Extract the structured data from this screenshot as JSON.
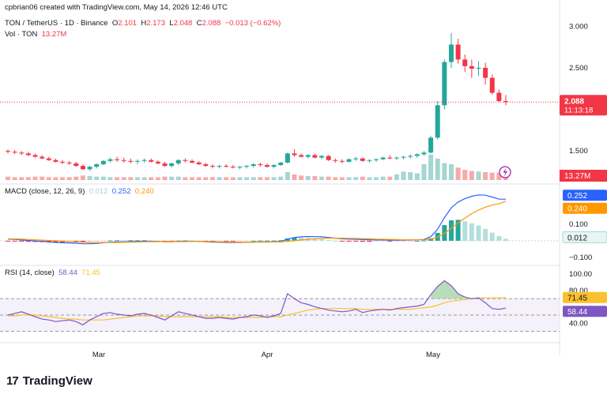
{
  "header": {
    "created": "cpbrian06 created with TradingView.com, May 14, 2026 12:46 UTC"
  },
  "price_legend": {
    "symbol": "TON / TetherUS · 1D · Binance",
    "o_label": "O",
    "o": "2.101",
    "h_label": "H",
    "h": "2.173",
    "l_label": "L",
    "l": "2.048",
    "c_label": "C",
    "c": "2.088",
    "change": "−0.013 (−0.62%)"
  },
  "vol_legend": {
    "label": "Vol · TON",
    "value": "13.27M"
  },
  "price_axis": {
    "ticks": [
      "3.000",
      "2.500",
      "1.500"
    ],
    "last_price": "2.088",
    "countdown": "11:13:18"
  },
  "volume_badge": "13.27M",
  "macd": {
    "label": "MACD (close, 12, 26, 9)",
    "hist": "0.012",
    "macd": "0.252",
    "signal": "0.240",
    "ticks": [
      "0.200",
      "0.100",
      "−0.100"
    ]
  },
  "rsi": {
    "label": "RSI (14, close)",
    "value": "58.44",
    "ma": "71.45",
    "ticks": [
      "100.00",
      "80.00",
      "40.00"
    ]
  },
  "time_axis": [
    "Mar",
    "Apr",
    "May"
  ],
  "brand": {
    "logo": "17",
    "name": "TradingView"
  },
  "colors": {
    "up": "#26a69a",
    "down": "#f23645",
    "vol_up": "#a5d6d2",
    "vol_down": "#f7a9a7",
    "macd": "#2962ff",
    "signal": "#ff9800",
    "rsi": "#7e57c2",
    "rsi_ma": "#fbc02d",
    "rsi_fill": "#ede7f6",
    "axis_text": "#131722"
  },
  "chart_data": {
    "type": "candlestick",
    "ohlc": [
      [
        1.5,
        1.52,
        1.47,
        1.49
      ],
      [
        1.49,
        1.51,
        1.46,
        1.48
      ],
      [
        1.48,
        1.5,
        1.45,
        1.47
      ],
      [
        1.47,
        1.49,
        1.44,
        1.45
      ],
      [
        1.45,
        1.47,
        1.42,
        1.43
      ],
      [
        1.43,
        1.45,
        1.4,
        1.41
      ],
      [
        1.41,
        1.43,
        1.38,
        1.39
      ],
      [
        1.39,
        1.41,
        1.36,
        1.37
      ],
      [
        1.37,
        1.39,
        1.34,
        1.36
      ],
      [
        1.36,
        1.38,
        1.33,
        1.35
      ],
      [
        1.35,
        1.37,
        1.31,
        1.32
      ],
      [
        1.32,
        1.34,
        1.27,
        1.28
      ],
      [
        1.28,
        1.32,
        1.26,
        1.31
      ],
      [
        1.31,
        1.35,
        1.29,
        1.34
      ],
      [
        1.34,
        1.39,
        1.33,
        1.38
      ],
      [
        1.38,
        1.42,
        1.36,
        1.4
      ],
      [
        1.4,
        1.43,
        1.37,
        1.39
      ],
      [
        1.39,
        1.42,
        1.36,
        1.38
      ],
      [
        1.38,
        1.41,
        1.35,
        1.37
      ],
      [
        1.37,
        1.4,
        1.34,
        1.38
      ],
      [
        1.38,
        1.41,
        1.36,
        1.39
      ],
      [
        1.39,
        1.41,
        1.36,
        1.37
      ],
      [
        1.37,
        1.39,
        1.34,
        1.35
      ],
      [
        1.35,
        1.37,
        1.31,
        1.32
      ],
      [
        1.32,
        1.36,
        1.3,
        1.35
      ],
      [
        1.35,
        1.4,
        1.33,
        1.39
      ],
      [
        1.39,
        1.41,
        1.36,
        1.38
      ],
      [
        1.38,
        1.4,
        1.35,
        1.36
      ],
      [
        1.36,
        1.38,
        1.33,
        1.34
      ],
      [
        1.34,
        1.36,
        1.31,
        1.32
      ],
      [
        1.32,
        1.34,
        1.29,
        1.31
      ],
      [
        1.31,
        1.33,
        1.29,
        1.32
      ],
      [
        1.32,
        1.34,
        1.3,
        1.31
      ],
      [
        1.31,
        1.33,
        1.29,
        1.3
      ],
      [
        1.3,
        1.32,
        1.28,
        1.31
      ],
      [
        1.31,
        1.33,
        1.29,
        1.32
      ],
      [
        1.32,
        1.35,
        1.3,
        1.34
      ],
      [
        1.34,
        1.36,
        1.31,
        1.33
      ],
      [
        1.33,
        1.35,
        1.3,
        1.31
      ],
      [
        1.31,
        1.34,
        1.29,
        1.33
      ],
      [
        1.33,
        1.37,
        1.32,
        1.36
      ],
      [
        1.36,
        1.48,
        1.35,
        1.47
      ],
      [
        1.47,
        1.52,
        1.43,
        1.45
      ],
      [
        1.45,
        1.47,
        1.42,
        1.43
      ],
      [
        1.43,
        1.46,
        1.41,
        1.45
      ],
      [
        1.45,
        1.47,
        1.41,
        1.42
      ],
      [
        1.42,
        1.45,
        1.4,
        1.44
      ],
      [
        1.44,
        1.45,
        1.38,
        1.39
      ],
      [
        1.39,
        1.41,
        1.36,
        1.38
      ],
      [
        1.38,
        1.4,
        1.35,
        1.37
      ],
      [
        1.37,
        1.41,
        1.36,
        1.4
      ],
      [
        1.4,
        1.43,
        1.38,
        1.41
      ],
      [
        1.41,
        1.42,
        1.37,
        1.38
      ],
      [
        1.38,
        1.4,
        1.36,
        1.39
      ],
      [
        1.39,
        1.41,
        1.37,
        1.4
      ],
      [
        1.4,
        1.43,
        1.39,
        1.42
      ],
      [
        1.42,
        1.45,
        1.4,
        1.41
      ],
      [
        1.41,
        1.43,
        1.39,
        1.42
      ],
      [
        1.42,
        1.44,
        1.4,
        1.43
      ],
      [
        1.43,
        1.46,
        1.41,
        1.44
      ],
      [
        1.44,
        1.47,
        1.42,
        1.46
      ],
      [
        1.46,
        1.5,
        1.44,
        1.48
      ],
      [
        1.48,
        1.68,
        1.47,
        1.66
      ],
      [
        1.66,
        2.1,
        1.64,
        2.05
      ],
      [
        2.05,
        2.6,
        2.0,
        2.57
      ],
      [
        2.57,
        2.92,
        2.5,
        2.78
      ],
      [
        2.78,
        2.85,
        2.55,
        2.6
      ],
      [
        2.6,
        2.66,
        2.45,
        2.52
      ],
      [
        2.52,
        2.6,
        2.38,
        2.49
      ],
      [
        2.49,
        2.58,
        2.4,
        2.5
      ],
      [
        2.5,
        2.56,
        2.3,
        2.38
      ],
      [
        2.38,
        2.42,
        2.18,
        2.2
      ],
      [
        2.2,
        2.24,
        2.09,
        2.1
      ],
      [
        2.101,
        2.173,
        2.048,
        2.088
      ]
    ],
    "x_labels": [
      "Mar",
      "Apr",
      "May"
    ],
    "y_ticks": [
      3.0,
      2.5,
      1.5
    ],
    "ylim": [
      1.15,
      3.05
    ],
    "volume_ylim": [
      0,
      60
    ],
    "volume": [
      6,
      5,
      5,
      5,
      6,
      6,
      5,
      5,
      5,
      5,
      6,
      8,
      7,
      6,
      6,
      5,
      5,
      5,
      5,
      5,
      5,
      5,
      5,
      6,
      6,
      6,
      5,
      5,
      5,
      5,
      5,
      5,
      5,
      5,
      5,
      5,
      5,
      5,
      5,
      5,
      6,
      14,
      10,
      8,
      7,
      7,
      6,
      6,
      5,
      5,
      5,
      5,
      6,
      5,
      5,
      6,
      6,
      10,
      15,
      14,
      12,
      28,
      45,
      38,
      30,
      28,
      22,
      18,
      16,
      15,
      14,
      13,
      13,
      13.27
    ],
    "macd_ylim": [
      -0.12,
      0.32
    ],
    "macd_line": [
      0.01,
      0.008,
      0.005,
      0.002,
      -0.001,
      -0.004,
      -0.007,
      -0.01,
      -0.012,
      -0.013,
      -0.015,
      -0.018,
      -0.018,
      -0.016,
      -0.012,
      -0.009,
      -0.007,
      -0.006,
      -0.005,
      -0.004,
      -0.003,
      -0.003,
      -0.004,
      -0.006,
      -0.006,
      -0.004,
      -0.003,
      -0.003,
      -0.004,
      -0.006,
      -0.008,
      -0.009,
      -0.01,
      -0.01,
      -0.01,
      -0.009,
      -0.008,
      -0.007,
      -0.007,
      -0.006,
      -0.004,
      0.01,
      0.02,
      0.024,
      0.026,
      0.025,
      0.024,
      0.02,
      0.016,
      0.012,
      0.01,
      0.009,
      0.007,
      0.006,
      0.005,
      0.005,
      0.004,
      0.004,
      0.004,
      0.005,
      0.006,
      0.008,
      0.025,
      0.07,
      0.14,
      0.2,
      0.235,
      0.255,
      0.27,
      0.278,
      0.276,
      0.265,
      0.252,
      0.252
    ],
    "signal_line": [
      0.012,
      0.011,
      0.01,
      0.008,
      0.006,
      0.004,
      0.002,
      0.0,
      -0.002,
      -0.004,
      -0.006,
      -0.008,
      -0.01,
      -0.011,
      -0.011,
      -0.011,
      -0.01,
      -0.009,
      -0.008,
      -0.007,
      -0.006,
      -0.005,
      -0.005,
      -0.005,
      -0.005,
      -0.005,
      -0.005,
      -0.004,
      -0.004,
      -0.005,
      -0.005,
      -0.006,
      -0.007,
      -0.007,
      -0.008,
      -0.008,
      -0.008,
      -0.008,
      -0.008,
      -0.007,
      -0.007,
      -0.004,
      0.0,
      0.005,
      0.009,
      0.012,
      0.014,
      0.016,
      0.016,
      0.016,
      0.015,
      0.014,
      0.013,
      0.012,
      0.01,
      0.009,
      0.008,
      0.007,
      0.006,
      0.006,
      0.006,
      0.006,
      0.01,
      0.022,
      0.045,
      0.076,
      0.108,
      0.137,
      0.164,
      0.186,
      0.204,
      0.216,
      0.224,
      0.24
    ],
    "rsi_ylim": [
      20,
      105
    ],
    "rsi": [
      50,
      52,
      54,
      51,
      48,
      45,
      44,
      42,
      43,
      44,
      42,
      38,
      44,
      48,
      52,
      53,
      51,
      50,
      49,
      51,
      52,
      50,
      47,
      44,
      49,
      54,
      52,
      50,
      48,
      46,
      46,
      47,
      46,
      45,
      47,
      48,
      50,
      49,
      47,
      49,
      52,
      76,
      70,
      65,
      63,
      60,
      58,
      56,
      55,
      54,
      55,
      57,
      53,
      55,
      56,
      57,
      56,
      58,
      59,
      60,
      61,
      63,
      75,
      85,
      92,
      86,
      76,
      72,
      70,
      71,
      65,
      58,
      57,
      58.44
    ],
    "rsi_ma": [
      49,
      49,
      50,
      50,
      50,
      49,
      48,
      47,
      46,
      45,
      45,
      44,
      44,
      44,
      44,
      45,
      46,
      47,
      48,
      49,
      49,
      49,
      49,
      48,
      48,
      48,
      48,
      48,
      48,
      48,
      48,
      48,
      47,
      47,
      47,
      47,
      47,
      47,
      48,
      48,
      48,
      50,
      52,
      54,
      56,
      57,
      58,
      58,
      58,
      58,
      58,
      58,
      57,
      57,
      57,
      57,
      57,
      57,
      57,
      57,
      58,
      59,
      60,
      62,
      65,
      67,
      68,
      69,
      70,
      71,
      71,
      71,
      71,
      71.45
    ],
    "rsi_bands": [
      70,
      50,
      30
    ]
  }
}
